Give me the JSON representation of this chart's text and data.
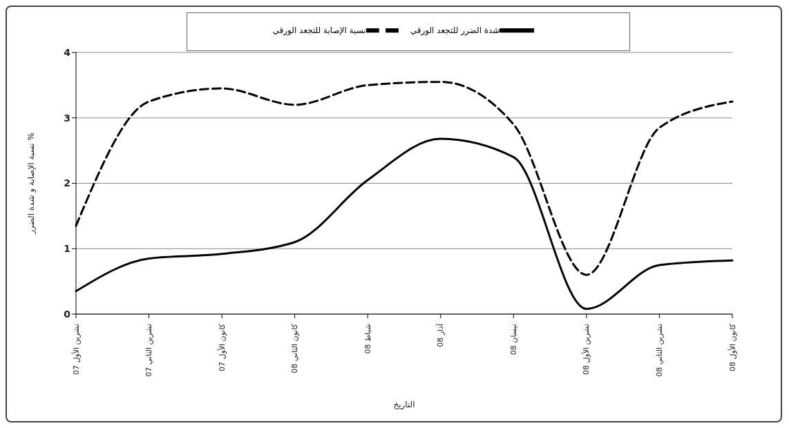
{
  "chart_data": {
    "type": "line",
    "xlabel": "التاريخ",
    "ylabel": "نسبة الإصابة و شدة الضرر %",
    "categories": [
      "تشرين الأول 07",
      "تشرين الثاني 07",
      "كانون الأول 07",
      "كانون الثاني 08",
      "شباط 08",
      "آذار 08",
      "نيسان 08",
      "تشرين الأول 08",
      "تشرين الثاني 08",
      "كانون الأول 08"
    ],
    "series": [
      {
        "name": "شدة الضرر للتجعد الورقي",
        "color": "#000000",
        "line_style": "solid",
        "values": [
          0.35,
          0.85,
          0.92,
          1.1,
          2.05,
          2.68,
          2.4,
          0.08,
          0.75,
          0.82
        ]
      },
      {
        "name": "نسبة الإصابة للتجعد الورقي",
        "color": "#000000",
        "line_style": "dashed",
        "values": [
          1.35,
          3.25,
          3.45,
          3.2,
          3.5,
          3.55,
          2.9,
          0.6,
          2.85,
          3.25
        ]
      }
    ],
    "ylim": [
      0,
      4
    ],
    "yticks": [
      0,
      1,
      2,
      3,
      4
    ],
    "grid": "y",
    "legend": "top",
    "marker": "none"
  }
}
